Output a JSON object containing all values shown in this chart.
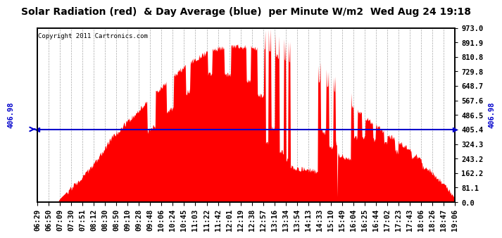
{
  "title": "Solar Radiation (red)  & Day Average (blue)  per Minute W/m2  Wed Aug 24 19:18",
  "copyright": "Copyright 2011 Cartronics.com",
  "y_min": 0.0,
  "y_max": 973.0,
  "y_ticks": [
    0.0,
    81.1,
    162.2,
    243.2,
    324.3,
    405.4,
    486.5,
    567.6,
    648.7,
    729.8,
    810.8,
    891.9,
    973.0
  ],
  "avg_value": 406.98,
  "avg_label": "406.98",
  "x_labels": [
    "06:29",
    "06:50",
    "07:09",
    "07:30",
    "07:51",
    "08:12",
    "08:30",
    "08:50",
    "09:10",
    "09:28",
    "09:48",
    "10:06",
    "10:24",
    "10:45",
    "11:03",
    "11:22",
    "11:42",
    "12:01",
    "12:19",
    "12:38",
    "12:57",
    "13:16",
    "13:34",
    "13:54",
    "14:13",
    "14:33",
    "15:10",
    "15:49",
    "16:04",
    "16:25",
    "16:44",
    "17:02",
    "17:23",
    "17:43",
    "18:06",
    "18:26",
    "18:47",
    "19:06"
  ],
  "bar_color": "#ff0000",
  "line_color": "#0000cc",
  "background_color": "#ffffff",
  "grid_color": "#aaaaaa",
  "title_fontsize": 10,
  "copyright_fontsize": 6.5,
  "tick_fontsize": 7.5
}
